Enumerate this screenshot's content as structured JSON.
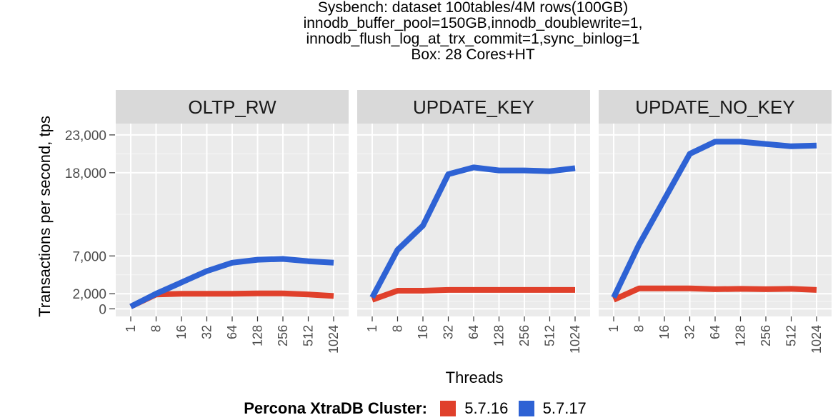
{
  "chart_data": {
    "type": "line",
    "title_lines": [
      "Sysbench: dataset 100tables/4M rows(100GB)",
      "innodb_buffer_pool=150GB,innodb_doublewrite=1,",
      "innodb_flush_log_at_trx_commit=1,sync_binlog=1",
      "Box: 28 Cores+HT"
    ],
    "xlabel": "Threads",
    "ylabel": "Transactions per second, tps",
    "x": [
      "1",
      "8",
      "16",
      "32",
      "64",
      "128",
      "256",
      "512",
      "1024"
    ],
    "ylim": [
      -1000,
      24500
    ],
    "yticks": [
      0,
      2000,
      7000,
      18000,
      23000
    ],
    "ytick_labels": [
      "0",
      "2,000",
      "7,000",
      "18,000",
      "23,000"
    ],
    "grid": true,
    "legend": {
      "title": "Percona XtraDB Cluster:",
      "placement": "bottom",
      "entries": [
        {
          "label": "5.7.16",
          "color": "#E0402B"
        },
        {
          "label": "5.7.17",
          "color": "#2E62D4"
        }
      ]
    },
    "panels": [
      {
        "name": "OLTP_RW",
        "series": [
          {
            "name": "5.7.16",
            "color": "#E0402B",
            "values": [
              300,
              1900,
              2000,
              2000,
              2000,
              2050,
              2050,
              1900,
              1700
            ]
          },
          {
            "name": "5.7.17",
            "color": "#2E62D4",
            "values": [
              300,
              2000,
              3500,
              5000,
              6100,
              6500,
              6600,
              6300,
              6100
            ]
          }
        ]
      },
      {
        "name": "UPDATE_KEY",
        "series": [
          {
            "name": "5.7.16",
            "color": "#E0402B",
            "values": [
              1200,
              2400,
              2400,
              2500,
              2500,
              2500,
              2500,
              2500,
              2500
            ]
          },
          {
            "name": "5.7.17",
            "color": "#2E62D4",
            "values": [
              1500,
              7800,
              11000,
              17800,
              18700,
              18300,
              18300,
              18200,
              18600
            ]
          }
        ]
      },
      {
        "name": "UPDATE_NO_KEY",
        "series": [
          {
            "name": "5.7.16",
            "color": "#E0402B",
            "values": [
              1200,
              2700,
              2700,
              2700,
              2600,
              2650,
              2600,
              2650,
              2500
            ]
          },
          {
            "name": "5.7.17",
            "color": "#2E62D4",
            "values": [
              1500,
              8500,
              14500,
              20500,
              22100,
              22100,
              21800,
              21500,
              21600
            ]
          }
        ]
      }
    ]
  }
}
